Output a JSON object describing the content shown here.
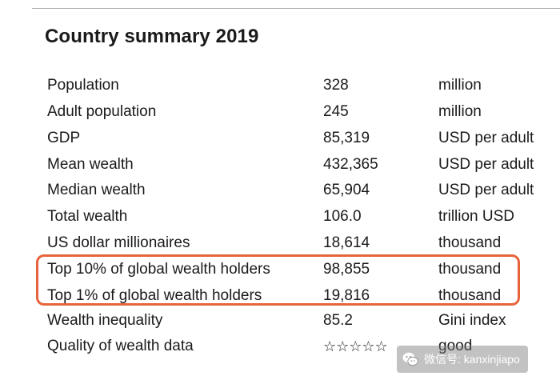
{
  "title": "Country summary 2019",
  "rows": [
    {
      "label": "Population",
      "value": "328",
      "unit": "million"
    },
    {
      "label": "Adult population",
      "value": "245",
      "unit": "million"
    },
    {
      "label": "GDP",
      "value": "85,319",
      "unit": "USD per adult"
    },
    {
      "label": "Mean wealth",
      "value": "432,365",
      "unit": "USD per adult"
    },
    {
      "label": "Median wealth",
      "value": "65,904",
      "unit": "USD per adult"
    },
    {
      "label": "Total wealth",
      "value": "106.0",
      "unit": "trillion USD"
    },
    {
      "label": "US dollar millionaires",
      "value": "18,614",
      "unit": "thousand"
    },
    {
      "label": "Top 10% of global wealth holders",
      "value": "98,855",
      "unit": "thousand"
    },
    {
      "label": "Top 1% of global wealth holders",
      "value": "19,816",
      "unit": "thousand"
    },
    {
      "label": "Wealth inequality",
      "value": "85.2",
      "unit": "Gini index"
    },
    {
      "label": "Quality of wealth data",
      "value": "☆☆☆☆☆",
      "unit": "good"
    }
  ],
  "quality_rating": {
    "filled": 0,
    "max": 5
  },
  "highlight_color": "#e7643a",
  "watermark": {
    "text": "微信号: kanxinjiapo",
    "icon": "wechat-icon"
  }
}
